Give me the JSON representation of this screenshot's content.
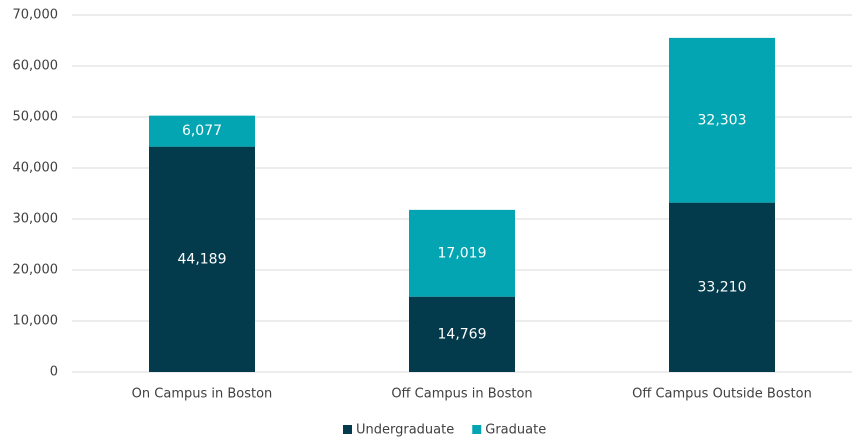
{
  "chart_data": {
    "type": "stacked_bar",
    "categories": [
      "On Campus in Boston",
      "Off Campus in Boston",
      "Off Campus Outside Boston"
    ],
    "series": [
      {
        "name": "Undergraduate",
        "color": "#033a4c",
        "values": [
          44189,
          14769,
          33210
        ],
        "value_labels": [
          "44,189",
          "14,769",
          "33,210"
        ]
      },
      {
        "name": "Graduate",
        "color": "#02a5b1",
        "values": [
          6077,
          17019,
          32303
        ],
        "value_labels": [
          "6,077",
          "17,019",
          "32,303"
        ]
      }
    ],
    "ylim": [
      0,
      70000
    ],
    "yticks": [
      0,
      {
        "value": 10000,
        "label": "10,000"
      },
      {
        "value": 20000,
        "label": "20,000"
      },
      {
        "value": 30000,
        "label": "30,000"
      },
      {
        "value": 40000,
        "label": "40,000"
      },
      {
        "value": 50000,
        "label": "50,000"
      },
      {
        "value": 60000,
        "label": "60,000"
      },
      {
        "value": 70000,
        "label": "70,000"
      }
    ],
    "grid": true,
    "legend": "bottom"
  }
}
